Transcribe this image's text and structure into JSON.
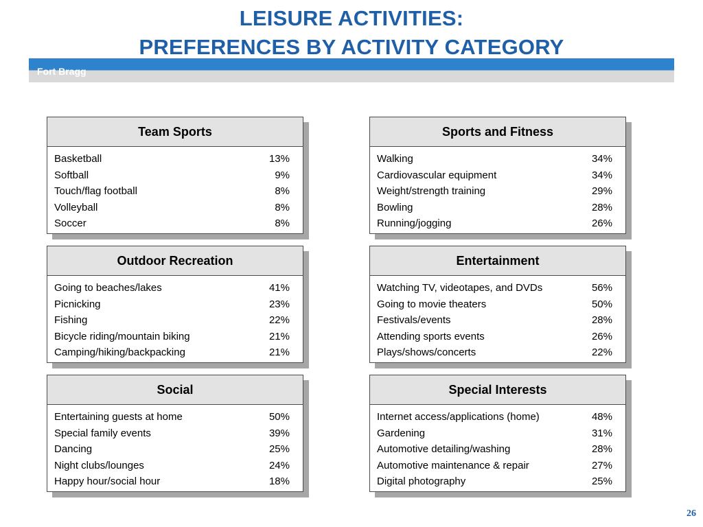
{
  "title": {
    "line1": "LEISURE ACTIVITIES:",
    "line2": "PREFERENCES BY ACTIVITY CATEGORY"
  },
  "banner": {
    "label": "Fort Bragg"
  },
  "colors": {
    "title": "#1f5fa8",
    "banner_blue": "#2f82cc",
    "banner_grey": "#d9d9d9",
    "panel_header_bg": "#e3e3e3",
    "panel_shadow": "#a6a6a6"
  },
  "panels": [
    {
      "title": "Team Sports",
      "rows": [
        {
          "activity": "Basketball",
          "pct": "13%"
        },
        {
          "activity": "Softball",
          "pct": "9%"
        },
        {
          "activity": "Touch/flag football",
          "pct": "8%"
        },
        {
          "activity": "Volleyball",
          "pct": "8%"
        },
        {
          "activity": "Soccer",
          "pct": "8%"
        }
      ]
    },
    {
      "title": "Sports and Fitness",
      "rows": [
        {
          "activity": "Walking",
          "pct": "34%"
        },
        {
          "activity": "Cardiovascular equipment",
          "pct": "34%"
        },
        {
          "activity": "Weight/strength training",
          "pct": "29%"
        },
        {
          "activity": "Bowling",
          "pct": "28%"
        },
        {
          "activity": "Running/jogging",
          "pct": "26%"
        }
      ]
    },
    {
      "title": "Outdoor Recreation",
      "rows": [
        {
          "activity": "Going to beaches/lakes",
          "pct": "41%"
        },
        {
          "activity": "Picnicking",
          "pct": "23%"
        },
        {
          "activity": "Fishing",
          "pct": "22%"
        },
        {
          "activity": "Bicycle riding/mountain biking",
          "pct": "21%"
        },
        {
          "activity": "Camping/hiking/backpacking",
          "pct": "21%"
        }
      ]
    },
    {
      "title": "Entertainment",
      "rows": [
        {
          "activity": "Watching TV, videotapes, and DVDs",
          "pct": "56%"
        },
        {
          "activity": "Going to movie theaters",
          "pct": "50%"
        },
        {
          "activity": "Festivals/events",
          "pct": "28%"
        },
        {
          "activity": "Attending sports events",
          "pct": "26%"
        },
        {
          "activity": "Plays/shows/concerts",
          "pct": "22%"
        }
      ]
    },
    {
      "title": "Social",
      "rows": [
        {
          "activity": "Entertaining guests at home",
          "pct": "50%"
        },
        {
          "activity": "Special family events",
          "pct": "39%"
        },
        {
          "activity": "Dancing",
          "pct": "25%"
        },
        {
          "activity": "Night clubs/lounges",
          "pct": "24%"
        },
        {
          "activity": "Happy hour/social hour",
          "pct": "18%"
        }
      ]
    },
    {
      "title": "Special Interests",
      "rows": [
        {
          "activity": "Internet access/applications (home)",
          "pct": "48%"
        },
        {
          "activity": "Gardening",
          "pct": "31%"
        },
        {
          "activity": "Automotive detailing/washing",
          "pct": "28%"
        },
        {
          "activity": "Automotive maintenance & repair",
          "pct": "27%"
        },
        {
          "activity": "Digital photography",
          "pct": "25%"
        }
      ]
    }
  ],
  "page_number": "26"
}
